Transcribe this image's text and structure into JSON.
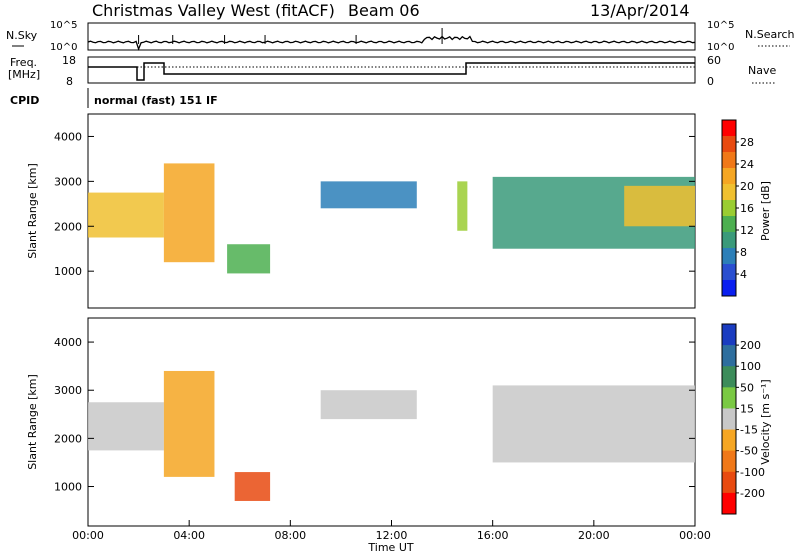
{
  "header": {
    "title": "Christmas Valley West (fitACF)",
    "beam": "Beam 06",
    "date": "13/Apr/2014"
  },
  "noise_panel": {
    "left_label": "N.Sky",
    "right_label": "N.Search",
    "y_ticks": [
      "10^5",
      "10^0"
    ]
  },
  "freq_panel": {
    "left_label_line1": "Freq.",
    "left_label_line2": "[MHz]",
    "right_label": "Nave",
    "left_ticks": [
      "18",
      "8"
    ],
    "right_ticks": [
      "60",
      "0"
    ]
  },
  "cpid": {
    "label": "CPID",
    "value": "normal (fast) 151 IF"
  },
  "x_axis": {
    "label": "Time UT",
    "ticks": [
      "00:00",
      "04:00",
      "08:00",
      "12:00",
      "16:00",
      "20:00",
      "00:00"
    ]
  },
  "chart_data": [
    {
      "type": "heatmap",
      "ylabel": "Slant Range [km]",
      "ylim": [
        180,
        4500
      ],
      "y_ticks": [
        1000,
        2000,
        3000,
        4000
      ],
      "xlim_hours": [
        0,
        24
      ],
      "colorbar": {
        "label": "Power [dB]",
        "ticks": [
          "28",
          "24",
          "20",
          "16",
          "12",
          "8",
          "4"
        ],
        "colors": [
          "#0a1ff0",
          "#2a4fd0",
          "#2c7fb8",
          "#3a9a7a",
          "#4caf50",
          "#9acd32",
          "#f0c030",
          "#f5a623",
          "#f07818",
          "#e84a10",
          "#ff0000"
        ]
      },
      "regions": [
        {
          "name": "bands-00-03",
          "t": [
            0.0,
            3.0
          ],
          "r": [
            1750,
            2750
          ],
          "value": 18
        },
        {
          "name": "bands-03-05",
          "t": [
            3.0,
            5.0
          ],
          "r": [
            1200,
            3400
          ],
          "value": 22
        },
        {
          "name": "band-05-07",
          "t": [
            5.5,
            7.2
          ],
          "r": [
            950,
            1600
          ],
          "value": 14
        },
        {
          "name": "streak-09-13",
          "t": [
            9.2,
            13.0
          ],
          "r": [
            2400,
            3000
          ],
          "value": 6
        },
        {
          "name": "patch-14-15",
          "t": [
            14.6,
            15.0
          ],
          "r": [
            1900,
            3000
          ],
          "value": 16
        },
        {
          "name": "arc-16-24",
          "t": [
            16.0,
            24.0
          ],
          "r": [
            1500,
            3100
          ],
          "value": 10
        },
        {
          "name": "patch-21-24",
          "t": [
            21.2,
            24.0
          ],
          "r": [
            2000,
            2900
          ],
          "value": 20
        }
      ]
    },
    {
      "type": "heatmap",
      "ylabel": "Velocity [m s^-1]",
      "ylim": [
        180,
        4500
      ],
      "y_ticks": [
        1000,
        2000,
        3000,
        4000
      ],
      "xlim_hours": [
        0,
        24
      ],
      "ylabel_left": "Slant Range [km]",
      "colorbar": {
        "label": "Velocity [m s⁻¹]",
        "ticks": [
          "200",
          "100",
          "50",
          "15",
          "-15",
          "-50",
          "-100",
          "-200"
        ],
        "colors": [
          "#1a3cc0",
          "#2e6e9e",
          "#3c8c5a",
          "#7ac943",
          "#c8c8c8",
          "#f5a623",
          "#f07818",
          "#e84a10",
          "#ff0000"
        ]
      },
      "regions": [
        {
          "name": "ground-00-03",
          "t": [
            0.0,
            3.0
          ],
          "r": [
            1750,
            2750
          ],
          "value": 0
        },
        {
          "name": "neg-03-05",
          "t": [
            3.0,
            5.0
          ],
          "r": [
            1200,
            3400
          ],
          "value": -40
        },
        {
          "name": "neg-06-07",
          "t": [
            5.8,
            7.2
          ],
          "r": [
            700,
            1300
          ],
          "value": -180
        },
        {
          "name": "streak-09-13",
          "t": [
            9.2,
            13.0
          ],
          "r": [
            2400,
            3000
          ],
          "value": -20
        },
        {
          "name": "arc-16-24",
          "t": [
            16.0,
            24.0
          ],
          "r": [
            1500,
            3100
          ],
          "value": 0
        }
      ]
    }
  ]
}
